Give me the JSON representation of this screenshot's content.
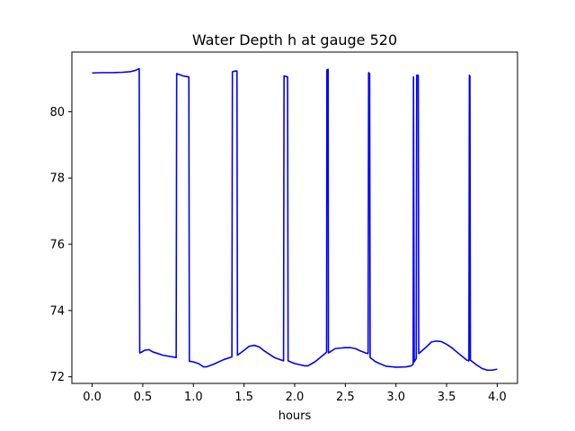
{
  "chart_data": {
    "type": "line",
    "title": "Water Depth h at gauge 520",
    "xlabel": "hours",
    "ylabel": "",
    "xlim": [
      -0.2,
      4.2
    ],
    "ylim": [
      71.8,
      81.8
    ],
    "xticks": [
      0.0,
      0.5,
      1.0,
      1.5,
      2.0,
      2.5,
      3.0,
      3.5,
      4.0
    ],
    "xtick_labels": [
      "0.0",
      "0.5",
      "1.0",
      "1.5",
      "2.0",
      "2.5",
      "3.0",
      "3.5",
      "4.0"
    ],
    "yticks": [
      72,
      74,
      76,
      78,
      80
    ],
    "ytick_labels": [
      "72",
      "74",
      "76",
      "78",
      "80"
    ],
    "grid": false,
    "series": [
      {
        "color": "#0000ff",
        "x": [
          0.0,
          0.1,
          0.2,
          0.3,
          0.38,
          0.43,
          0.465,
          0.47,
          0.48,
          0.52,
          0.56,
          0.6,
          0.7,
          0.83,
          0.835,
          0.9,
          0.955,
          0.96,
          1.0,
          1.05,
          1.1,
          1.13,
          1.2,
          1.3,
          1.38,
          1.385,
          1.4,
          1.43,
          1.435,
          1.5,
          1.55,
          1.6,
          1.65,
          1.7,
          1.8,
          1.89,
          1.895,
          1.93,
          1.935,
          2.0,
          2.1,
          2.13,
          2.2,
          2.3,
          2.315,
          2.318,
          2.33,
          2.333,
          2.4,
          2.5,
          2.55,
          2.6,
          2.65,
          2.7,
          2.725,
          2.73,
          2.74,
          2.745,
          2.8,
          2.9,
          3.0,
          3.1,
          3.15,
          3.17,
          3.173,
          3.18,
          3.2,
          3.205,
          3.22,
          3.225,
          3.3,
          3.35,
          3.4,
          3.45,
          3.5,
          3.55,
          3.6,
          3.7,
          3.72,
          3.725,
          3.73,
          3.735,
          3.8,
          3.85,
          3.9,
          3.95,
          4.0
        ],
        "y": [
          81.17,
          81.18,
          81.18,
          81.19,
          81.21,
          81.25,
          81.3,
          72.72,
          72.73,
          72.8,
          72.82,
          72.75,
          72.65,
          72.58,
          81.15,
          81.08,
          81.05,
          72.47,
          72.45,
          72.4,
          72.3,
          72.3,
          72.38,
          72.52,
          72.6,
          81.2,
          81.22,
          81.23,
          72.65,
          72.8,
          72.92,
          72.95,
          72.9,
          72.78,
          72.58,
          72.48,
          81.08,
          81.05,
          72.48,
          72.4,
          72.33,
          72.33,
          72.45,
          72.7,
          72.75,
          81.26,
          81.28,
          72.72,
          72.85,
          72.88,
          72.88,
          72.85,
          72.78,
          72.72,
          72.7,
          81.18,
          81.15,
          72.58,
          72.45,
          72.32,
          72.29,
          72.3,
          72.33,
          72.38,
          81.05,
          72.45,
          72.55,
          81.1,
          81.1,
          72.7,
          72.9,
          73.05,
          73.08,
          73.06,
          72.98,
          72.88,
          72.75,
          72.5,
          72.48,
          81.1,
          81.08,
          72.5,
          72.35,
          72.25,
          72.2,
          72.2,
          72.23
        ]
      }
    ]
  }
}
